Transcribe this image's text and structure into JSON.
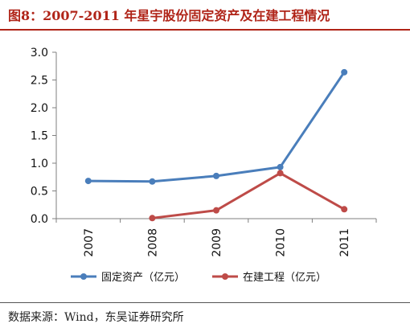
{
  "title": "图8：2007-2011 年星宇股份固定资产及在建工程情况",
  "source": "数据来源：Wind，东吴证券研究所",
  "chart_data": {
    "type": "line",
    "categories": [
      "2007",
      "2008",
      "2009",
      "2010",
      "2011"
    ],
    "series": [
      {
        "name": "固定资产（亿元）",
        "color": "#4a7ebb",
        "values": [
          0.68,
          0.67,
          0.77,
          0.93,
          2.64
        ]
      },
      {
        "name": "在建工程（亿元）",
        "color": "#be4b48",
        "values": [
          null,
          0.01,
          0.15,
          0.82,
          0.17
        ]
      }
    ],
    "yticks": [
      "0.0",
      "0.5",
      "1.0",
      "1.5",
      "2.0",
      "2.5",
      "3.0"
    ],
    "ylim": [
      0,
      3
    ],
    "xlabel": "",
    "ylabel": "",
    "grid": false,
    "legend_position": "bottom"
  }
}
